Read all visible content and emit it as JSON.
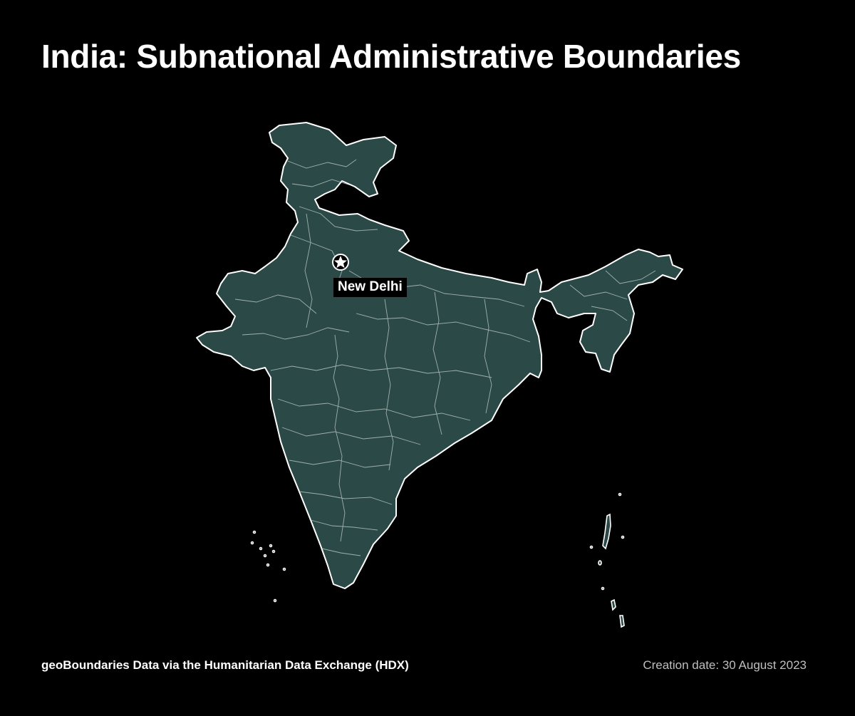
{
  "header": {
    "title": "India: Subnational Administrative Boundaries"
  },
  "map": {
    "country": "India",
    "fill_color": "#2b4a47",
    "boundary_color": "#ffffff",
    "background_color": "#000000",
    "capital": {
      "name": "New Delhi",
      "marker_icon": "star-icon"
    }
  },
  "footer": {
    "source": "geoBoundaries Data via the Humanitarian Data Exchange (HDX)",
    "creation_date": "Creation date: 30 August 2023"
  }
}
